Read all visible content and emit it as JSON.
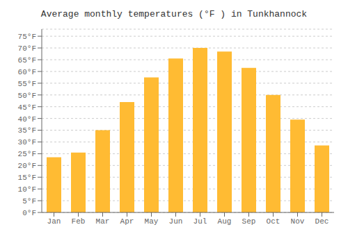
{
  "chart_data": {
    "type": "bar",
    "title": "Average monthly temperatures (°F ) in Tunkhannock",
    "categories": [
      "Jan",
      "Feb",
      "Mar",
      "Apr",
      "May",
      "Jun",
      "Jul",
      "Aug",
      "Sep",
      "Oct",
      "Nov",
      "Dec"
    ],
    "values": [
      23.5,
      25.5,
      35.0,
      47.0,
      57.5,
      65.5,
      70.0,
      68.5,
      61.5,
      50.0,
      39.5,
      28.5
    ],
    "color": "#FFBB33",
    "ylim": [
      0,
      78
    ],
    "yticks": [
      {
        "value": 0,
        "label": "0°F"
      },
      {
        "value": 5,
        "label": "5°F"
      },
      {
        "value": 10,
        "label": "10°F"
      },
      {
        "value": 15,
        "label": "15°F"
      },
      {
        "value": 20,
        "label": "20°F"
      },
      {
        "value": 25,
        "label": "25°F"
      },
      {
        "value": 30,
        "label": "30°F"
      },
      {
        "value": 35,
        "label": "35°F"
      },
      {
        "value": 40,
        "label": "40°F"
      },
      {
        "value": 45,
        "label": "45°F"
      },
      {
        "value": 50,
        "label": "50°F"
      },
      {
        "value": 55,
        "label": "55°F"
      },
      {
        "value": 60,
        "label": "60°F"
      },
      {
        "value": 65,
        "label": "65°F"
      },
      {
        "value": 70,
        "label": "70°F"
      },
      {
        "value": 75,
        "label": "75°F"
      }
    ],
    "grid": true
  }
}
